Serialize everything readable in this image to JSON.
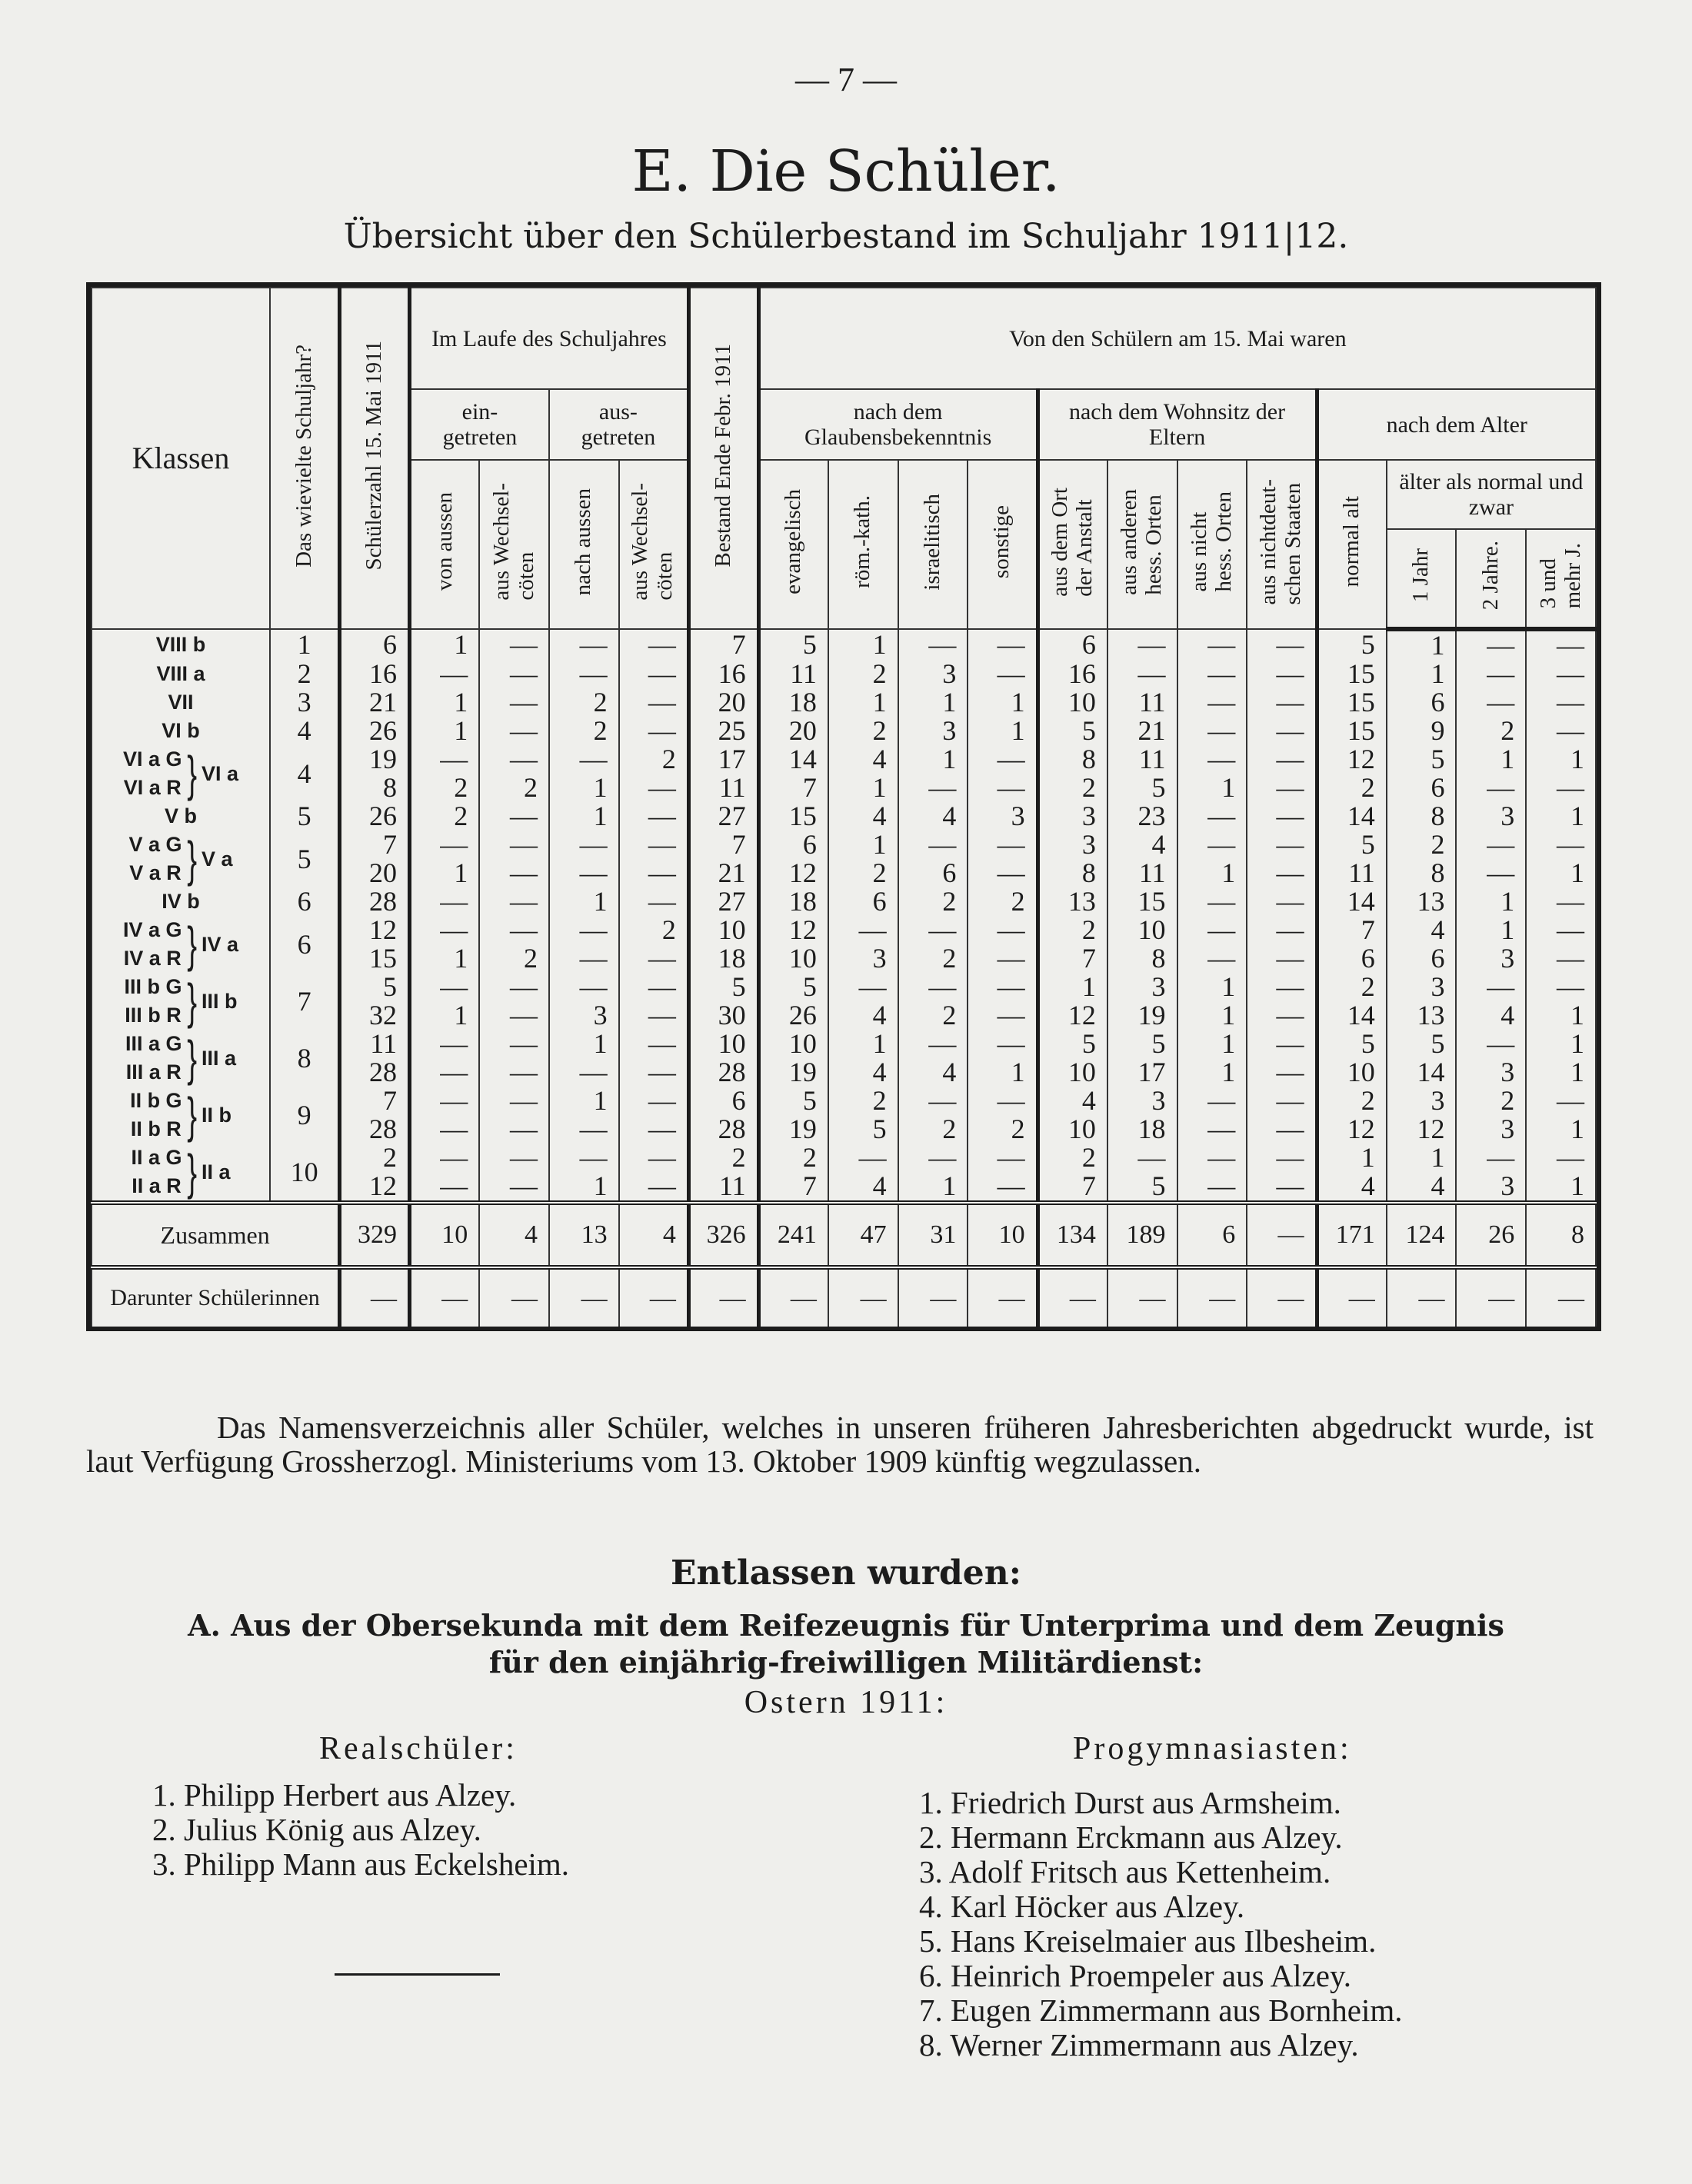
{
  "page_number": "— 7 —",
  "title": "E. Die Schüler.",
  "subtitle": "Übersicht über den Schülerbestand im Schuljahr 1911|12.",
  "table": {
    "headers": {
      "klassen": "Klassen",
      "wieviel": "Das wievielte Schuljahr?",
      "schuelerzahl": "Schülerzahl 15. Mai 1911",
      "im_laufe": "Im Laufe des Schuljahres",
      "eingetreten": "ein-\ngetreten",
      "ausgetreten": "aus-\ngetreten",
      "von_aussen": "von aussen",
      "ein_wechsel": "aus Wechsel-\ncöten",
      "nach_aussen": "nach aussen",
      "aus_wechsel": "aus Wechsel-\ncöten",
      "bestand": "Bestand Ende Febr. 1911",
      "von_den": "Von den Schülern am 15. Mai waren",
      "glauben": "nach dem Glaubensbekenntnis",
      "wohnsitz": "nach dem Wohnsitz der Eltern",
      "alter": "nach dem Alter",
      "evangelisch": "evangelisch",
      "katholisch": "röm.-kath.",
      "israelitisch": "israelitisch",
      "sonstige": "sonstige",
      "ort": "aus dem Ort\nder Anstalt",
      "andere": "aus anderen\nhess. Orten",
      "nicht_hess": "aus nicht\nhess. Orten",
      "nichtdeutsch": "aus nichtdeut-\nschen Staaten",
      "normal": "normal alt",
      "aelter": "älter als normal und zwar",
      "j1": "1 Jahr",
      "j2": "2 Jahre.",
      "j3": "3 und\nmehr J."
    },
    "entries": [
      {
        "wieviel": "1",
        "group": null,
        "classes": [
          {
            "name": "VIII b",
            "values": [
              "6",
              "1",
              "—",
              "—",
              "—",
              "7",
              "5",
              "1",
              "—",
              "—",
              "6",
              "—",
              "—",
              "—",
              "5",
              "1",
              "—",
              "—"
            ]
          }
        ]
      },
      {
        "wieviel": "2",
        "group": null,
        "classes": [
          {
            "name": "VIII a",
            "values": [
              "16",
              "—",
              "—",
              "—",
              "—",
              "16",
              "11",
              "2",
              "3",
              "—",
              "16",
              "—",
              "—",
              "—",
              "15",
              "1",
              "—",
              "—"
            ]
          }
        ]
      },
      {
        "wieviel": "3",
        "group": null,
        "classes": [
          {
            "name": "VII",
            "values": [
              "21",
              "1",
              "—",
              "2",
              "—",
              "20",
              "18",
              "1",
              "1",
              "1",
              "10",
              "11",
              "—",
              "—",
              "15",
              "6",
              "—",
              "—"
            ]
          }
        ]
      },
      {
        "wieviel": "4",
        "group": null,
        "classes": [
          {
            "name": "VI b",
            "values": [
              "26",
              "1",
              "—",
              "2",
              "—",
              "25",
              "20",
              "2",
              "3",
              "1",
              "5",
              "21",
              "—",
              "—",
              "15",
              "9",
              "2",
              "—"
            ]
          }
        ]
      },
      {
        "wieviel": "4",
        "group": "VI a",
        "classes": [
          {
            "name": "VI a G",
            "values": [
              "19",
              "—",
              "—",
              "—",
              "2",
              "17",
              "14",
              "4",
              "1",
              "—",
              "8",
              "11",
              "—",
              "—",
              "12",
              "5",
              "1",
              "1"
            ]
          },
          {
            "name": "VI a R",
            "values": [
              "8",
              "2",
              "2",
              "1",
              "—",
              "11",
              "7",
              "1",
              "—",
              "—",
              "2",
              "5",
              "1",
              "—",
              "2",
              "6",
              "—",
              "—"
            ]
          }
        ]
      },
      {
        "wieviel": "5",
        "group": null,
        "classes": [
          {
            "name": "V b",
            "values": [
              "26",
              "2",
              "—",
              "1",
              "—",
              "27",
              "15",
              "4",
              "4",
              "3",
              "3",
              "23",
              "—",
              "—",
              "14",
              "8",
              "3",
              "1"
            ]
          }
        ]
      },
      {
        "wieviel": "5",
        "group": "V a",
        "classes": [
          {
            "name": "V a G",
            "values": [
              "7",
              "—",
              "—",
              "—",
              "—",
              "7",
              "6",
              "1",
              "—",
              "—",
              "3",
              "4",
              "—",
              "—",
              "5",
              "2",
              "—",
              "—"
            ]
          },
          {
            "name": "V a R",
            "values": [
              "20",
              "1",
              "—",
              "—",
              "—",
              "21",
              "12",
              "2",
              "6",
              "—",
              "8",
              "11",
              "1",
              "—",
              "11",
              "8",
              "—",
              "1"
            ]
          }
        ]
      },
      {
        "wieviel": "6",
        "group": null,
        "classes": [
          {
            "name": "IV b",
            "values": [
              "28",
              "—",
              "—",
              "1",
              "—",
              "27",
              "18",
              "6",
              "2",
              "2",
              "13",
              "15",
              "—",
              "—",
              "14",
              "13",
              "1",
              "—"
            ]
          }
        ]
      },
      {
        "wieviel": "6",
        "group": "IV a",
        "classes": [
          {
            "name": "IV a G",
            "values": [
              "12",
              "—",
              "—",
              "—",
              "2",
              "10",
              "12",
              "—",
              "—",
              "—",
              "2",
              "10",
              "—",
              "—",
              "7",
              "4",
              "1",
              "—"
            ]
          },
          {
            "name": "IV a R",
            "values": [
              "15",
              "1",
              "2",
              "—",
              "—",
              "18",
              "10",
              "3",
              "2",
              "—",
              "7",
              "8",
              "—",
              "—",
              "6",
              "6",
              "3",
              "—"
            ]
          }
        ]
      },
      {
        "wieviel": "7",
        "group": "III b",
        "classes": [
          {
            "name": "III b G",
            "values": [
              "5",
              "—",
              "—",
              "—",
              "—",
              "5",
              "5",
              "—",
              "—",
              "—",
              "1",
              "3",
              "1",
              "—",
              "2",
              "3",
              "—",
              "—"
            ]
          },
          {
            "name": "III b R",
            "values": [
              "32",
              "1",
              "—",
              "3",
              "—",
              "30",
              "26",
              "4",
              "2",
              "—",
              "12",
              "19",
              "1",
              "—",
              "14",
              "13",
              "4",
              "1"
            ]
          }
        ]
      },
      {
        "wieviel": "8",
        "group": "III a",
        "classes": [
          {
            "name": "III a G",
            "values": [
              "11",
              "—",
              "—",
              "1",
              "—",
              "10",
              "10",
              "1",
              "—",
              "—",
              "5",
              "5",
              "1",
              "—",
              "5",
              "5",
              "—",
              "1"
            ]
          },
          {
            "name": "III a R",
            "values": [
              "28",
              "—",
              "—",
              "—",
              "—",
              "28",
              "19",
              "4",
              "4",
              "1",
              "10",
              "17",
              "1",
              "—",
              "10",
              "14",
              "3",
              "1"
            ]
          }
        ]
      },
      {
        "wieviel": "9",
        "group": "II b",
        "classes": [
          {
            "name": "II b G",
            "values": [
              "7",
              "—",
              "—",
              "1",
              "—",
              "6",
              "5",
              "2",
              "—",
              "—",
              "4",
              "3",
              "—",
              "—",
              "2",
              "3",
              "2",
              "—"
            ]
          },
          {
            "name": "II b R",
            "values": [
              "28",
              "—",
              "—",
              "—",
              "—",
              "28",
              "19",
              "5",
              "2",
              "2",
              "10",
              "18",
              "—",
              "—",
              "12",
              "12",
              "3",
              "1"
            ]
          }
        ]
      },
      {
        "wieviel": "10",
        "group": "II a",
        "classes": [
          {
            "name": "II a G",
            "values": [
              "2",
              "—",
              "—",
              "—",
              "—",
              "2",
              "2",
              "—",
              "—",
              "—",
              "2",
              "—",
              "—",
              "—",
              "1",
              "1",
              "—",
              "—"
            ]
          },
          {
            "name": "II a R",
            "values": [
              "12",
              "—",
              "—",
              "1",
              "—",
              "11",
              "7",
              "4",
              "1",
              "—",
              "7",
              "5",
              "—",
              "—",
              "4",
              "4",
              "3",
              "1"
            ]
          }
        ]
      }
    ],
    "total": {
      "label": "Zusammen",
      "values": [
        "329",
        "10",
        "4",
        "13",
        "4",
        "326",
        "241",
        "47",
        "31",
        "10",
        "134",
        "189",
        "6",
        "—",
        "171",
        "124",
        "26",
        "8"
      ]
    },
    "girls": {
      "label": "Darunter Schülerinnen",
      "values": [
        "—",
        "—",
        "—",
        "—",
        "—",
        "—",
        "—",
        "—",
        "—",
        "—",
        "—",
        "—",
        "—",
        "—",
        "—",
        "—",
        "—",
        "—"
      ]
    }
  },
  "paragraph": "Das Namensverzeichnis aller Schüler, welches in unseren früheren Jahresberichten abgedruckt wurde, ist laut Verfügung Grossherzogl. Ministeriums vom 13. Oktober 1909 künftig wegzulassen.",
  "entlassen_heading": "Entlassen wurden:",
  "section_a_line1": "A. Aus der Obersekunda mit dem Reifezeugnis für Unterprima und dem Zeugnis",
  "section_a_line2": "für den einjährig-freiwilligen Militärdienst:",
  "ostern": "Ostern 1911:",
  "realschueler_heading": "Realschüler:",
  "realschueler": [
    "1. Philipp Herbert aus Alzey.",
    "2. Julius König aus Alzey.",
    "3. Philipp Mann aus Eckelsheim."
  ],
  "progymnasiasten_heading": "Progymnasiasten:",
  "progymnasiasten": [
    "1. Friedrich Durst aus Armsheim.",
    "2. Hermann Erckmann aus Alzey.",
    "3. Adolf Fritsch aus Kettenheim.",
    "4. Karl Höcker aus Alzey.",
    "5. Hans Kreiselmaier aus Ilbesheim.",
    "6. Heinrich Proempeler aus Alzey.",
    "7. Eugen Zimmermann aus Bornheim.",
    "8. Werner Zimmermann aus Alzey."
  ]
}
